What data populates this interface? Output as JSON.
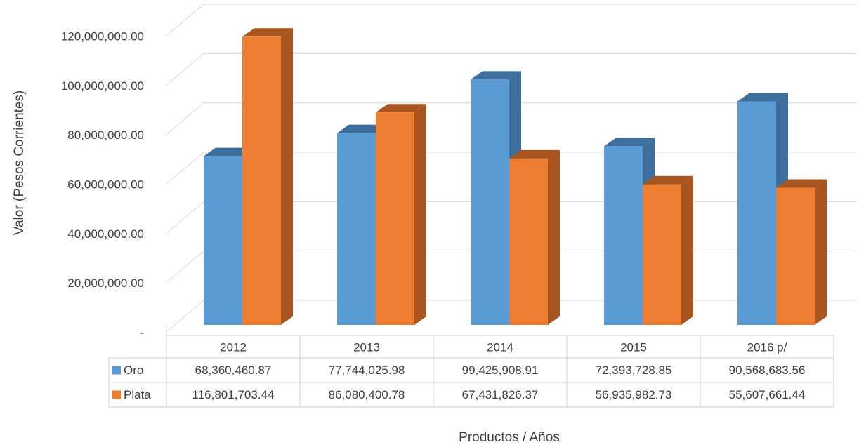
{
  "chart_data": {
    "type": "bar3d",
    "y_axis_label": "Valor (Pesos Corrientes)",
    "x_axis_label": "Productos / Años",
    "categories": [
      "2012",
      "2013",
      "2014",
      "2015",
      "2016 p/"
    ],
    "series": [
      {
        "name": "Oro",
        "color": "#5b9bd5",
        "side_color": "#3e6f9c",
        "values": [
          68360460.87,
          77744025.98,
          99425908.91,
          72393728.85,
          90568683.56
        ],
        "value_labels": [
          "68,360,460.87",
          "77,744,025.98",
          "99,425,908.91",
          "72,393,728.85",
          "90,568,683.56"
        ]
      },
      {
        "name": "Plata",
        "color": "#ed7d31",
        "side_color": "#a9551f",
        "values": [
          116801703.44,
          86080400.78,
          67431826.37,
          56935982.73,
          55607661.44
        ],
        "value_labels": [
          "116,801,703.44",
          "86,080,400.78",
          "67,431,826.37",
          "56,935,982.73",
          "55,607,661.44"
        ]
      }
    ],
    "ylim": [
      0,
      120000000
    ],
    "yticks": [
      {
        "value": 0,
        "label": "-"
      },
      {
        "value": 20000000,
        "label": "20,000,000.00"
      },
      {
        "value": 40000000,
        "label": "40,000,000.00"
      },
      {
        "value": 60000000,
        "label": "60,000,000.00"
      },
      {
        "value": 80000000,
        "label": "80,000,000.00"
      },
      {
        "value": 100000000,
        "label": "100,000,000.00"
      },
      {
        "value": 120000000,
        "label": "120,000,000.00"
      }
    ],
    "grid": true,
    "data_table": true
  }
}
